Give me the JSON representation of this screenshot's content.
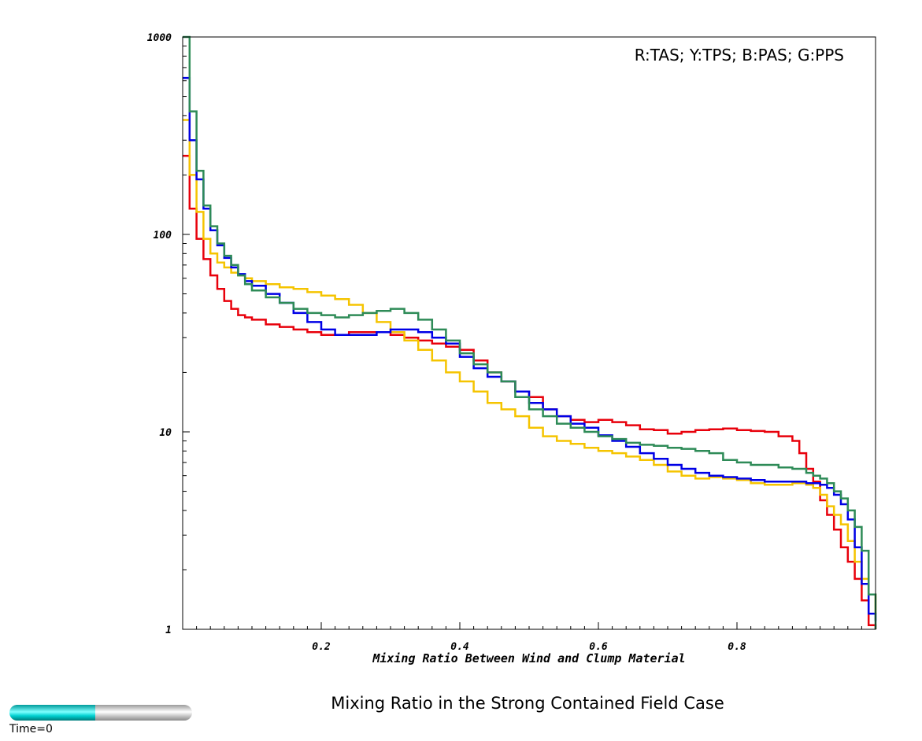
{
  "chart_data": {
    "type": "line",
    "title": "Mixing Ratio in the Strong Contained Field Case",
    "xlabel": "Mixing Ratio Between Wind and Clump Material",
    "ylabel": "",
    "xlim": [
      0,
      1
    ],
    "ylim": [
      1,
      1000
    ],
    "yscale": "log",
    "grid": false,
    "legend_text": "R:TAS; Y:TPS; B:PAS; G:PPS",
    "legend_placement": "top-right",
    "x_ticks": [
      0.2,
      0.4,
      0.6,
      0.8
    ],
    "x_tick_labels": [
      "0.2",
      "0.4",
      "0.6",
      "0.8"
    ],
    "y_ticks": [
      1,
      10,
      100,
      1000
    ],
    "y_tick_labels": [
      "1",
      "10",
      "100",
      "1000"
    ],
    "series": [
      {
        "color": "#e8000b",
        "x": [
          0,
          0.01,
          0.02,
          0.03,
          0.04,
          0.05,
          0.06,
          0.07,
          0.08,
          0.09,
          0.1,
          0.12,
          0.14,
          0.16,
          0.18,
          0.2,
          0.22,
          0.24,
          0.26,
          0.28,
          0.3,
          0.32,
          0.34,
          0.36,
          0.38,
          0.4,
          0.42,
          0.44,
          0.46,
          0.48,
          0.5,
          0.52,
          0.54,
          0.56,
          0.58,
          0.6,
          0.62,
          0.64,
          0.66,
          0.68,
          0.7,
          0.72,
          0.74,
          0.76,
          0.78,
          0.8,
          0.82,
          0.84,
          0.86,
          0.88,
          0.89,
          0.9,
          0.91,
          0.92,
          0.93,
          0.94,
          0.95,
          0.96,
          0.97,
          0.98,
          0.99,
          1.0
        ],
        "y": [
          250,
          135,
          95,
          75,
          62,
          53,
          46,
          42,
          39,
          38,
          37,
          35,
          34,
          33,
          32,
          31,
          31,
          32,
          32,
          32,
          31,
          30,
          29,
          28,
          27,
          26,
          23,
          20,
          18,
          16,
          15,
          13,
          12,
          11.5,
          11.2,
          11.5,
          11.2,
          10.8,
          10.3,
          10.2,
          9.8,
          10.0,
          10.2,
          10.3,
          10.4,
          10.2,
          10.1,
          10.0,
          9.5,
          9.0,
          7.8,
          6.5,
          5.6,
          4.5,
          3.8,
          3.2,
          2.6,
          2.2,
          1.8,
          1.4,
          1.05,
          1.0
        ]
      },
      {
        "color": "#f5c400",
        "x": [
          0,
          0.01,
          0.02,
          0.03,
          0.04,
          0.05,
          0.06,
          0.07,
          0.08,
          0.09,
          0.1,
          0.12,
          0.14,
          0.16,
          0.18,
          0.2,
          0.22,
          0.24,
          0.26,
          0.28,
          0.3,
          0.32,
          0.34,
          0.36,
          0.38,
          0.4,
          0.42,
          0.44,
          0.46,
          0.48,
          0.5,
          0.52,
          0.54,
          0.56,
          0.58,
          0.6,
          0.62,
          0.64,
          0.66,
          0.68,
          0.7,
          0.72,
          0.74,
          0.76,
          0.78,
          0.8,
          0.82,
          0.84,
          0.86,
          0.88,
          0.9,
          0.91,
          0.92,
          0.93,
          0.94,
          0.95,
          0.96,
          0.97,
          0.98,
          0.99,
          1.0
        ],
        "y": [
          380,
          200,
          130,
          95,
          80,
          72,
          68,
          64,
          62,
          60,
          58,
          56,
          54,
          53,
          51,
          49,
          47,
          44,
          40,
          36,
          32,
          29,
          26,
          23,
          20,
          18,
          16,
          14,
          13,
          12,
          10.5,
          9.5,
          9.0,
          8.7,
          8.3,
          8.0,
          7.8,
          7.5,
          7.2,
          6.8,
          6.3,
          6.0,
          5.8,
          5.9,
          5.8,
          5.7,
          5.5,
          5.4,
          5.4,
          5.5,
          5.4,
          5.2,
          4.8,
          4.2,
          3.8,
          3.4,
          2.8,
          2.2,
          1.8,
          1.5,
          1.2
        ]
      },
      {
        "color": "#0000e6",
        "x": [
          0,
          0.01,
          0.02,
          0.03,
          0.04,
          0.05,
          0.06,
          0.07,
          0.08,
          0.09,
          0.1,
          0.12,
          0.14,
          0.16,
          0.18,
          0.2,
          0.22,
          0.24,
          0.26,
          0.28,
          0.3,
          0.32,
          0.34,
          0.36,
          0.38,
          0.4,
          0.42,
          0.44,
          0.46,
          0.48,
          0.5,
          0.52,
          0.54,
          0.56,
          0.58,
          0.6,
          0.62,
          0.64,
          0.66,
          0.68,
          0.7,
          0.72,
          0.74,
          0.76,
          0.78,
          0.8,
          0.82,
          0.84,
          0.86,
          0.88,
          0.9,
          0.92,
          0.93,
          0.94,
          0.95,
          0.96,
          0.97,
          0.98,
          0.99,
          1.0
        ],
        "y": [
          620,
          300,
          190,
          135,
          105,
          88,
          76,
          68,
          63,
          58,
          55,
          50,
          45,
          40,
          36,
          33,
          31,
          31,
          31,
          32,
          33,
          33,
          32,
          30,
          28,
          24,
          21,
          19,
          18,
          16,
          14,
          13,
          12,
          11,
          10.5,
          9.6,
          9.0,
          8.4,
          7.8,
          7.3,
          6.8,
          6.5,
          6.2,
          6.0,
          5.9,
          5.8,
          5.7,
          5.6,
          5.6,
          5.6,
          5.5,
          5.4,
          5.2,
          4.8,
          4.3,
          3.6,
          2.6,
          1.7,
          1.2,
          1.1
        ]
      },
      {
        "color": "#2e8b57",
        "x": [
          0,
          0.01,
          0.02,
          0.03,
          0.04,
          0.05,
          0.06,
          0.07,
          0.08,
          0.09,
          0.1,
          0.12,
          0.14,
          0.16,
          0.18,
          0.2,
          0.22,
          0.24,
          0.26,
          0.28,
          0.3,
          0.32,
          0.34,
          0.36,
          0.38,
          0.4,
          0.42,
          0.44,
          0.46,
          0.48,
          0.5,
          0.52,
          0.54,
          0.56,
          0.58,
          0.6,
          0.62,
          0.64,
          0.66,
          0.68,
          0.7,
          0.72,
          0.74,
          0.76,
          0.78,
          0.8,
          0.82,
          0.84,
          0.86,
          0.88,
          0.9,
          0.91,
          0.92,
          0.93,
          0.94,
          0.95,
          0.96,
          0.97,
          0.98,
          0.99,
          1.0
        ],
        "y": [
          1000,
          420,
          210,
          140,
          110,
          90,
          78,
          70,
          62,
          56,
          52,
          48,
          45,
          42,
          40,
          39,
          38,
          39,
          40,
          41,
          42,
          40,
          37,
          33,
          29,
          25,
          22,
          20,
          18,
          15,
          13,
          12,
          11,
          10.5,
          10.0,
          9.5,
          9.2,
          8.8,
          8.6,
          8.5,
          8.3,
          8.2,
          8.0,
          7.8,
          7.2,
          7.0,
          6.8,
          6.8,
          6.6,
          6.5,
          6.2,
          6.0,
          5.8,
          5.5,
          5.0,
          4.6,
          4.0,
          3.3,
          2.5,
          1.5,
          1.0
        ]
      }
    ]
  },
  "time_slider": {
    "label": "Time=0",
    "fill_fraction": 0.47
  }
}
